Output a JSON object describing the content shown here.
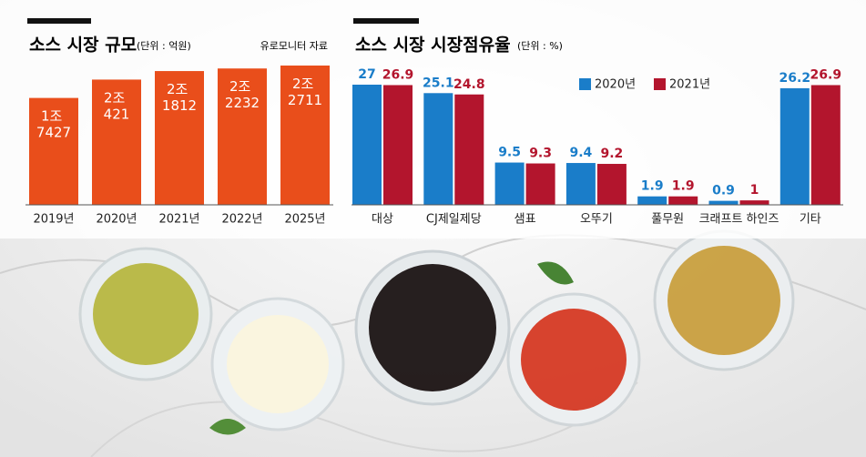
{
  "chart_data": [
    {
      "type": "bar",
      "title": "소스 시장 규모",
      "subtitle": "(단위 : 억원)",
      "source": "유로모니터 자료",
      "categories": [
        "2019년",
        "2020년",
        "2021년",
        "2022년",
        "2025년"
      ],
      "values": [
        17427,
        20421,
        21812,
        22232,
        22711
      ],
      "value_labels": [
        "1조 7427",
        "2조 421",
        "2조 1812",
        "2조 2232",
        "2조 2711"
      ],
      "color": "#e94e1b"
    },
    {
      "type": "grouped-bar",
      "title": "소스 시장 시장점유율",
      "subtitle": "(단위 : %)",
      "categories": [
        "대상",
        "CJ제일제당",
        "샘표",
        "오뚜기",
        "풀무원",
        "크래프트 하인즈",
        "기타"
      ],
      "series": [
        {
          "name": "2020년",
          "color": "#1a7dc9",
          "values": [
            27,
            25.1,
            9.5,
            9.4,
            1.9,
            0.9,
            26.2
          ]
        },
        {
          "name": "2021년",
          "color": "#b3152d",
          "values": [
            26.9,
            24.8,
            9.3,
            9.2,
            1.9,
            1,
            26.9
          ]
        }
      ]
    }
  ]
}
